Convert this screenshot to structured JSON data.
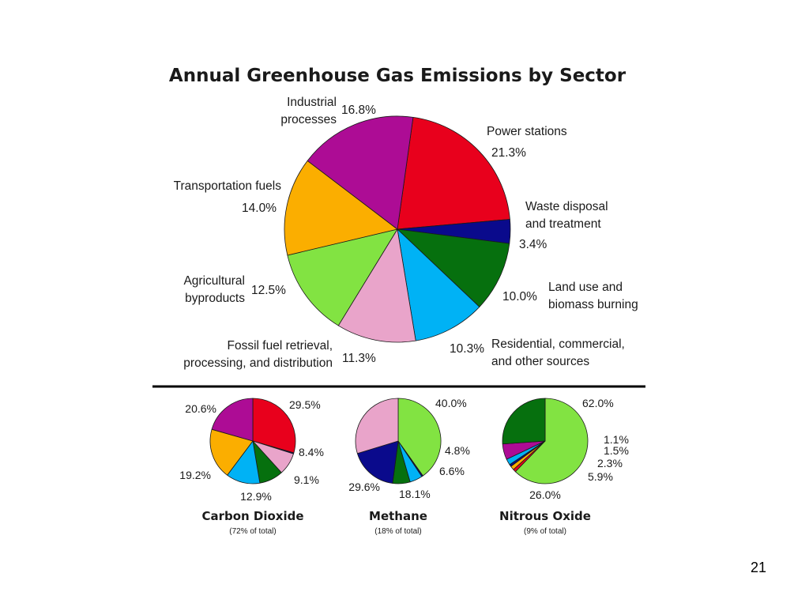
{
  "slide": {
    "page_number": "21"
  },
  "chart_data": [
    {
      "type": "pie",
      "title": "Annual Greenhouse Gas Emissions by Sector",
      "start_angle_deg": 8,
      "slices": [
        {
          "label": [
            "Power stations"
          ],
          "value": 21.3,
          "pct": "21.3%",
          "color": "#e8001c"
        },
        {
          "label": [
            "Waste disposal",
            "and treatment"
          ],
          "value": 3.4,
          "pct": "3.4%",
          "color": "#0a0a8c"
        },
        {
          "label": [
            "Land use and",
            "biomass burning"
          ],
          "value": 10.0,
          "pct": "10.0%",
          "color": "#06700e"
        },
        {
          "label": [
            "Residential, commercial,",
            "and other sources"
          ],
          "value": 10.3,
          "pct": "10.3%",
          "color": "#00b2f5"
        },
        {
          "label": [
            "Fossil fuel retrieval,",
            "processing, and distribution"
          ],
          "value": 11.3,
          "pct": "11.3%",
          "color": "#e9a4ca"
        },
        {
          "label": [
            "Agricultural",
            "byproducts"
          ],
          "value": 12.5,
          "pct": "12.5%",
          "color": "#82e342"
        },
        {
          "label": [
            "Transportation fuels"
          ],
          "value": 14.0,
          "pct": "14.0%",
          "color": "#fbae00"
        },
        {
          "label": [
            "Industrial",
            "processes"
          ],
          "value": 16.8,
          "pct": "16.8%",
          "color": "#ad0c95"
        }
      ]
    },
    {
      "type": "pie",
      "title": "Carbon Dioxide",
      "subtitle": "(72% of total)",
      "start_angle_deg": 0,
      "slices": [
        {
          "label": [],
          "value": 29.5,
          "pct": "29.5%",
          "color": "#e8001c"
        },
        {
          "label": [],
          "value": 0.4,
          "pct": "",
          "color": "#0a0a8c"
        },
        {
          "label": [],
          "value": 8.4,
          "pct": "8.4%",
          "color": "#e9a4ca"
        },
        {
          "label": [],
          "value": 9.1,
          "pct": "9.1%",
          "color": "#06700e"
        },
        {
          "label": [],
          "value": 12.9,
          "pct": "12.9%",
          "color": "#00b2f5"
        },
        {
          "label": [],
          "value": 19.2,
          "pct": "19.2%",
          "color": "#fbae00"
        },
        {
          "label": [],
          "value": 20.6,
          "pct": "20.6%",
          "color": "#ad0c95"
        }
      ]
    },
    {
      "type": "pie",
      "title": "Methane",
      "subtitle": "(18% of total)",
      "start_angle_deg": 0,
      "slices": [
        {
          "label": [],
          "value": 40.0,
          "pct": "40.0%",
          "color": "#82e342"
        },
        {
          "label": [],
          "value": 0.5,
          "pct": "",
          "color": "#0a0a8c"
        },
        {
          "label": [],
          "value": 4.8,
          "pct": "4.8%",
          "color": "#00b2f5"
        },
        {
          "label": [],
          "value": 6.6,
          "pct": "6.6%",
          "color": "#06700e"
        },
        {
          "label": [],
          "value": 18.1,
          "pct": "18.1%",
          "color": "#0a0a8c"
        },
        {
          "label": [],
          "value": 29.6,
          "pct": "29.6%",
          "color": "#e9a4ca"
        }
      ]
    },
    {
      "type": "pie",
      "title": "Nitrous Oxide",
      "subtitle": "(9% of total)",
      "start_angle_deg": 0,
      "slices": [
        {
          "label": [],
          "value": 62.0,
          "pct": "62.0%",
          "color": "#82e342"
        },
        {
          "label": [],
          "value": 1.1,
          "pct": "1.1%",
          "color": "#e8001c"
        },
        {
          "label": [],
          "value": 1.5,
          "pct": "1.5%",
          "color": "#fbae00"
        },
        {
          "label": [],
          "value": 0.8,
          "pct": "",
          "color": "#0a0a8c"
        },
        {
          "label": [],
          "value": 2.3,
          "pct": "2.3%",
          "color": "#00b2f5"
        },
        {
          "label": [],
          "value": 5.9,
          "pct": "5.9%",
          "color": "#ad0c95"
        },
        {
          "label": [],
          "value": 26.0,
          "pct": "26.0%",
          "color": "#06700e"
        }
      ]
    }
  ]
}
